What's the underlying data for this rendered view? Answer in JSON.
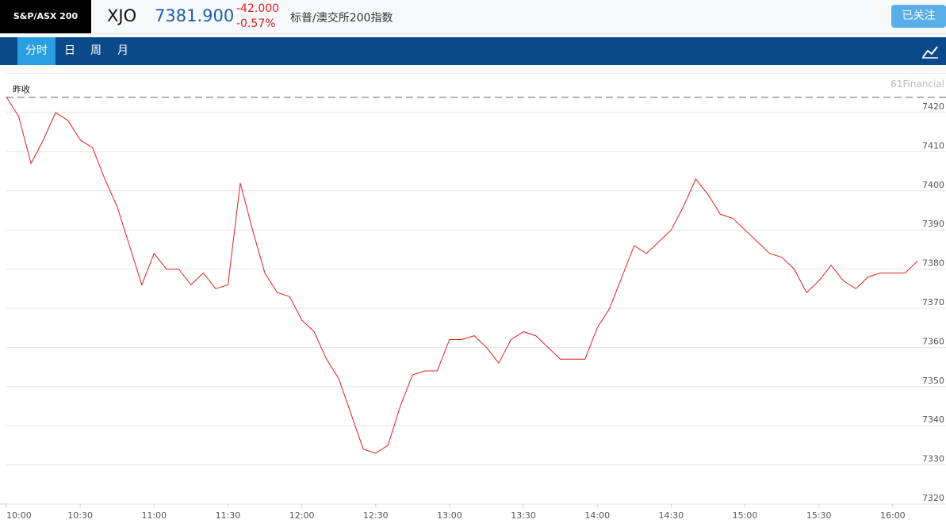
{
  "header": {
    "logo": "S&P/ASX 200",
    "symbol": "XJO",
    "price": "7381.900",
    "change": "-42.000",
    "change_pct": "-0.57%",
    "name": "标普/澳交所200指数",
    "follow_button": "已关注"
  },
  "tabs": [
    "分时",
    "日",
    "周",
    "月"
  ],
  "chart_data": {
    "type": "line",
    "prev_close_label": "昨收",
    "prev_close": 7423.9,
    "watermark": "61Financial",
    "x": [
      "10:00",
      "10:05",
      "10:10",
      "10:15",
      "10:20",
      "10:25",
      "10:30",
      "10:35",
      "10:40",
      "10:45",
      "10:50",
      "10:55",
      "11:00",
      "11:05",
      "11:10",
      "11:15",
      "11:20",
      "11:25",
      "11:30",
      "11:35",
      "11:40",
      "11:45",
      "11:50",
      "11:55",
      "12:00",
      "12:05",
      "12:10",
      "12:15",
      "12:20",
      "12:25",
      "12:30",
      "12:35",
      "12:40",
      "12:45",
      "12:50",
      "12:55",
      "13:00",
      "13:05",
      "13:10",
      "13:15",
      "13:20",
      "13:25",
      "13:30",
      "13:35",
      "13:40",
      "13:45",
      "13:50",
      "13:55",
      "14:00",
      "14:05",
      "14:10",
      "14:15",
      "14:20",
      "14:25",
      "14:30",
      "14:35",
      "14:40",
      "14:45",
      "14:50",
      "14:55",
      "15:00",
      "15:05",
      "15:10",
      "15:15",
      "15:20",
      "15:25",
      "15:30",
      "15:35",
      "15:40",
      "15:45",
      "15:50",
      "15:55",
      "16:00",
      "16:05",
      "16:10"
    ],
    "series": [
      {
        "color": "#e0201b",
        "values": [
          7424,
          7419,
          7407,
          7413,
          7420,
          7418,
          7413,
          7411,
          7403,
          7396,
          7386,
          7376,
          7384,
          7380,
          7380,
          7376,
          7379,
          7375,
          7376,
          7402,
          7390,
          7379,
          7374,
          7373,
          7367,
          7364,
          7357,
          7352,
          7343,
          7334,
          7333,
          7335,
          7345,
          7353,
          7354,
          7354,
          7362,
          7362,
          7363,
          7360,
          7356,
          7362,
          7364,
          7363,
          7360,
          7357,
          7357,
          7357,
          7365,
          7370,
          7378,
          7386,
          7384,
          7387,
          7390,
          7396,
          7403,
          7399,
          7394,
          7393,
          7390,
          7387,
          7384,
          7383,
          7380,
          7374,
          7377,
          7381,
          7377,
          7375,
          7378,
          7379,
          7379,
          7379,
          7382
        ]
      }
    ],
    "xlim": [
      "10:00",
      "16:11"
    ],
    "xticks": [
      "10:00",
      "10:30",
      "11:00",
      "11:30",
      "12:00",
      "12:30",
      "13:00",
      "13:30",
      "14:00",
      "14:30",
      "15:00",
      "15:30",
      "16:00"
    ],
    "ylim": [
      7320,
      7430
    ],
    "yticks": [
      7320,
      7330,
      7340,
      7350,
      7360,
      7370,
      7380,
      7390,
      7400,
      7410,
      7420
    ],
    "grid": true
  }
}
